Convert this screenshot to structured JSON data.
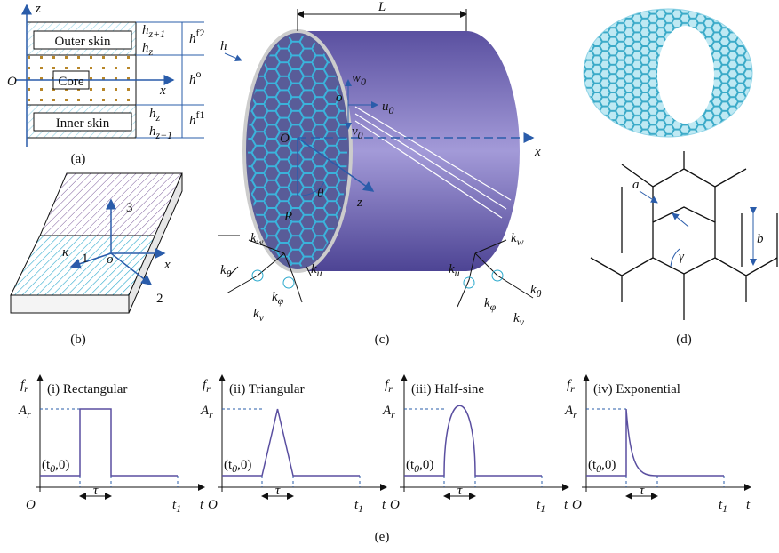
{
  "panels": {
    "a": "(a)",
    "b": "(b)",
    "c": "(c)",
    "d": "(d)",
    "e": "(e)"
  },
  "panel_a": {
    "outer": "Outer skin",
    "core": "Core",
    "inner": "Inner skin",
    "z": "z",
    "x": "x",
    "O": "O",
    "hz1": [
      {
        "t": "h"
      },
      {
        "sub": "z+1"
      }
    ],
    "hz_top": [
      {
        "t": "h"
      },
      {
        "sub": "z"
      }
    ],
    "hf2": [
      {
        "t": "h"
      },
      {
        "sup": "f2"
      }
    ],
    "ho": [
      {
        "t": "h"
      },
      {
        "sup": "o"
      }
    ],
    "hf1": [
      {
        "t": "h"
      },
      {
        "sup": "f1"
      }
    ],
    "hz_bot": [
      {
        "t": "h"
      },
      {
        "sub": "z"
      }
    ],
    "hzm1": [
      {
        "t": "h"
      },
      {
        "sub": "z−1"
      }
    ]
  },
  "panel_b": {
    "n3": "3",
    "n1": "1",
    "n2": "2",
    "x": "x",
    "o": "o",
    "kappa": "κ"
  },
  "panel_c": {
    "L": "L",
    "h": "h",
    "w0": [
      {
        "t": "w"
      },
      {
        "sub": "0"
      }
    ],
    "u0": [
      {
        "t": "u"
      },
      {
        "sub": "0"
      }
    ],
    "v0": [
      {
        "t": "v"
      },
      {
        "sub": "0"
      }
    ],
    "o": "o",
    "O": "O",
    "x": "x",
    "R": "R",
    "theta": "θ",
    "z": "z",
    "left": {
      "kw": [
        {
          "t": "k"
        },
        {
          "sub": "w"
        }
      ],
      "ktheta": [
        {
          "t": "k"
        },
        {
          "sub": "θ"
        }
      ],
      "ku": [
        {
          "t": "k"
        },
        {
          "sub": "u"
        }
      ],
      "kphi": [
        {
          "t": "k"
        },
        {
          "sub": "φ"
        }
      ],
      "kv": [
        {
          "t": "k"
        },
        {
          "sub": "v"
        }
      ]
    },
    "right": {
      "kw": [
        {
          "t": "k"
        },
        {
          "sub": "w"
        }
      ],
      "ktheta": [
        {
          "t": "k"
        },
        {
          "sub": "θ"
        }
      ],
      "ku": [
        {
          "t": "k"
        },
        {
          "sub": "u"
        }
      ],
      "kphi": [
        {
          "t": "k"
        },
        {
          "sub": "φ"
        }
      ],
      "kv": [
        {
          "t": "k"
        },
        {
          "sub": "v"
        }
      ]
    }
  },
  "panel_d": {
    "a": "a",
    "b": "b",
    "gamma": "γ"
  },
  "pulses": [
    {
      "title": "(i) Rectangular",
      "fr": [
        {
          "t": "f"
        },
        {
          "sub": "r"
        }
      ],
      "Ar": [
        {
          "t": "A"
        },
        {
          "sub": "r"
        }
      ],
      "t0": [
        {
          "t": "(t"
        },
        {
          "sub": "0"
        },
        {
          "t": ",0)"
        }
      ],
      "tau": "τ",
      "t1": [
        {
          "t": "t"
        },
        {
          "sub": "1"
        }
      ],
      "t": "t",
      "O": "O"
    },
    {
      "title": "(ii) Triangular",
      "fr": [
        {
          "t": "f"
        },
        {
          "sub": "r"
        }
      ],
      "Ar": [
        {
          "t": "A"
        },
        {
          "sub": "r"
        }
      ],
      "t0": [
        {
          "t": "(t"
        },
        {
          "sub": "0"
        },
        {
          "t": ",0)"
        }
      ],
      "tau": "τ",
      "t1": [
        {
          "t": "t"
        },
        {
          "sub": "1"
        }
      ],
      "t": "t",
      "O": "O"
    },
    {
      "title": "(iii) Half-sine",
      "fr": [
        {
          "t": "f"
        },
        {
          "sub": "r"
        }
      ],
      "Ar": [
        {
          "t": "A"
        },
        {
          "sub": "r"
        }
      ],
      "t0": [
        {
          "t": "(t"
        },
        {
          "sub": "0"
        },
        {
          "t": ",0)"
        }
      ],
      "tau": "τ",
      "t1": [
        {
          "t": "t"
        },
        {
          "sub": "1"
        }
      ],
      "t": "t",
      "O": "O"
    },
    {
      "title": "(iv) Exponential",
      "fr": [
        {
          "t": "f"
        },
        {
          "sub": "r"
        }
      ],
      "Ar": [
        {
          "t": "A"
        },
        {
          "sub": "r"
        }
      ],
      "t0": [
        {
          "t": "(t"
        },
        {
          "sub": "0"
        },
        {
          "t": ",0)"
        }
      ],
      "tau": "τ",
      "t1": [
        {
          "t": "t"
        },
        {
          "sub": "1"
        }
      ],
      "t": "t",
      "O": "O"
    }
  ]
}
